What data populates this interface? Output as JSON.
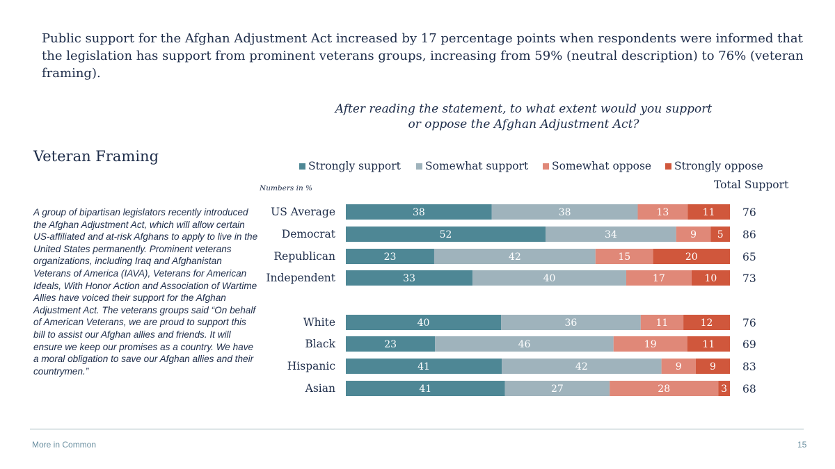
{
  "headline": "Public support for the Afghan Adjustment Act increased by 17 percentage points when respondents were informed that the legislation has support from prominent veterans groups, increasing from 59% (neutral description) to 76% (veteran framing).",
  "section_title": "Veteran Framing",
  "description": "A group of bipartisan legislators recently introduced the Afghan Adjustment Act, which will allow certain US-affiliated and at-risk Afghans to apply to live in the United States permanently. Prominent veterans organizations, including Iraq and Afghanistan Veterans of America (IAVA), Veterans for American Ideals, With Honor Action and Association of Wartime Allies have voiced their support for the Afghan Adjustment Act. The veterans groups said “On behalf of American Veterans, we are proud to support this bill to assist our Afghan allies and friends. It will ensure we keep our promises as a country. We have a moral obligation to save our Afghan allies and their countrymen.”",
  "footer": {
    "brand": "More in Common",
    "page": "15"
  },
  "colors": {
    "strongly_support": "#4e8795",
    "somewhat_support": "#9fb3bc",
    "somewhat_oppose": "#e08878",
    "strongly_oppose": "#d0573c"
  },
  "chart_data": {
    "type": "bar",
    "orientation": "horizontal",
    "stacked": true,
    "title": "After reading the statement, to what extent would you support or oppose the Afghan Adjustment Act?",
    "note": "Numbers in %",
    "total_label": "Total Support",
    "legend": [
      "Strongly support",
      "Somewhat support",
      "Somewhat oppose",
      "Strongly oppose"
    ],
    "categories": [
      "US Average",
      "Democrat",
      "Republican",
      "Independent",
      "White",
      "Black",
      "Hispanic",
      "Asian"
    ],
    "groups": [
      [
        0,
        1,
        2,
        3
      ],
      [
        4,
        5,
        6,
        7
      ]
    ],
    "series": [
      {
        "name": "Strongly support",
        "values": [
          38,
          52,
          23,
          33,
          40,
          23,
          41,
          41
        ]
      },
      {
        "name": "Somewhat support",
        "values": [
          38,
          34,
          42,
          40,
          36,
          46,
          42,
          27
        ]
      },
      {
        "name": "Somewhat oppose",
        "values": [
          13,
          9,
          15,
          17,
          11,
          19,
          9,
          28
        ]
      },
      {
        "name": "Strongly oppose",
        "values": [
          11,
          5,
          20,
          10,
          12,
          11,
          9,
          3
        ]
      }
    ],
    "total_support": [
      76,
      86,
      65,
      73,
      76,
      69,
      83,
      68
    ],
    "xlim": [
      0,
      100
    ]
  }
}
